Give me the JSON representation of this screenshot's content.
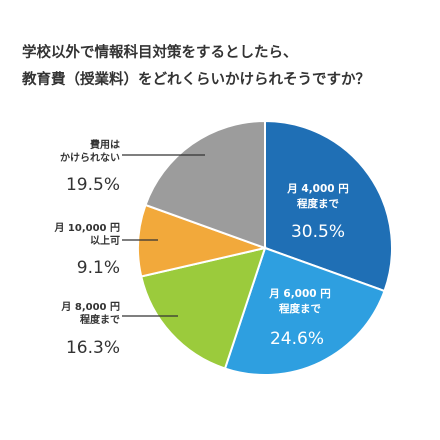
{
  "chart_data": {
    "type": "pie",
    "title_lines": [
      "学校以外で情報科目対策をするとしたら、",
      "教育費（授業料）をどれくらいかけられそうですか？"
    ],
    "start_angle_deg": 0,
    "direction": "clockwise",
    "slices": [
      {
        "label_lines": [
          "月 4,000 円",
          "程度まで"
        ],
        "value": 30.5,
        "value_label": "30.5%",
        "color": "#1F6FB5",
        "label_position": "inside"
      },
      {
        "label_lines": [
          "月 6,000 円",
          "程度まで"
        ],
        "value": 24.6,
        "value_label": "24.6%",
        "color": "#2E9FE0",
        "label_position": "inside"
      },
      {
        "label_lines": [
          "月 8,000 円",
          "程度まで"
        ],
        "value": 16.3,
        "value_label": "16.3%",
        "color": "#9BCB3C",
        "label_position": "outside-left"
      },
      {
        "label_lines": [
          "月 10,000 円",
          "以上可"
        ],
        "value": 9.1,
        "value_label": "9.1%",
        "color": "#F2A93B",
        "label_position": "outside-left"
      },
      {
        "label_lines": [
          "費用は",
          "かけられない"
        ],
        "value": 19.5,
        "value_label": "19.5%",
        "color": "#9C9C9C",
        "label_position": "outside-left"
      }
    ]
  }
}
